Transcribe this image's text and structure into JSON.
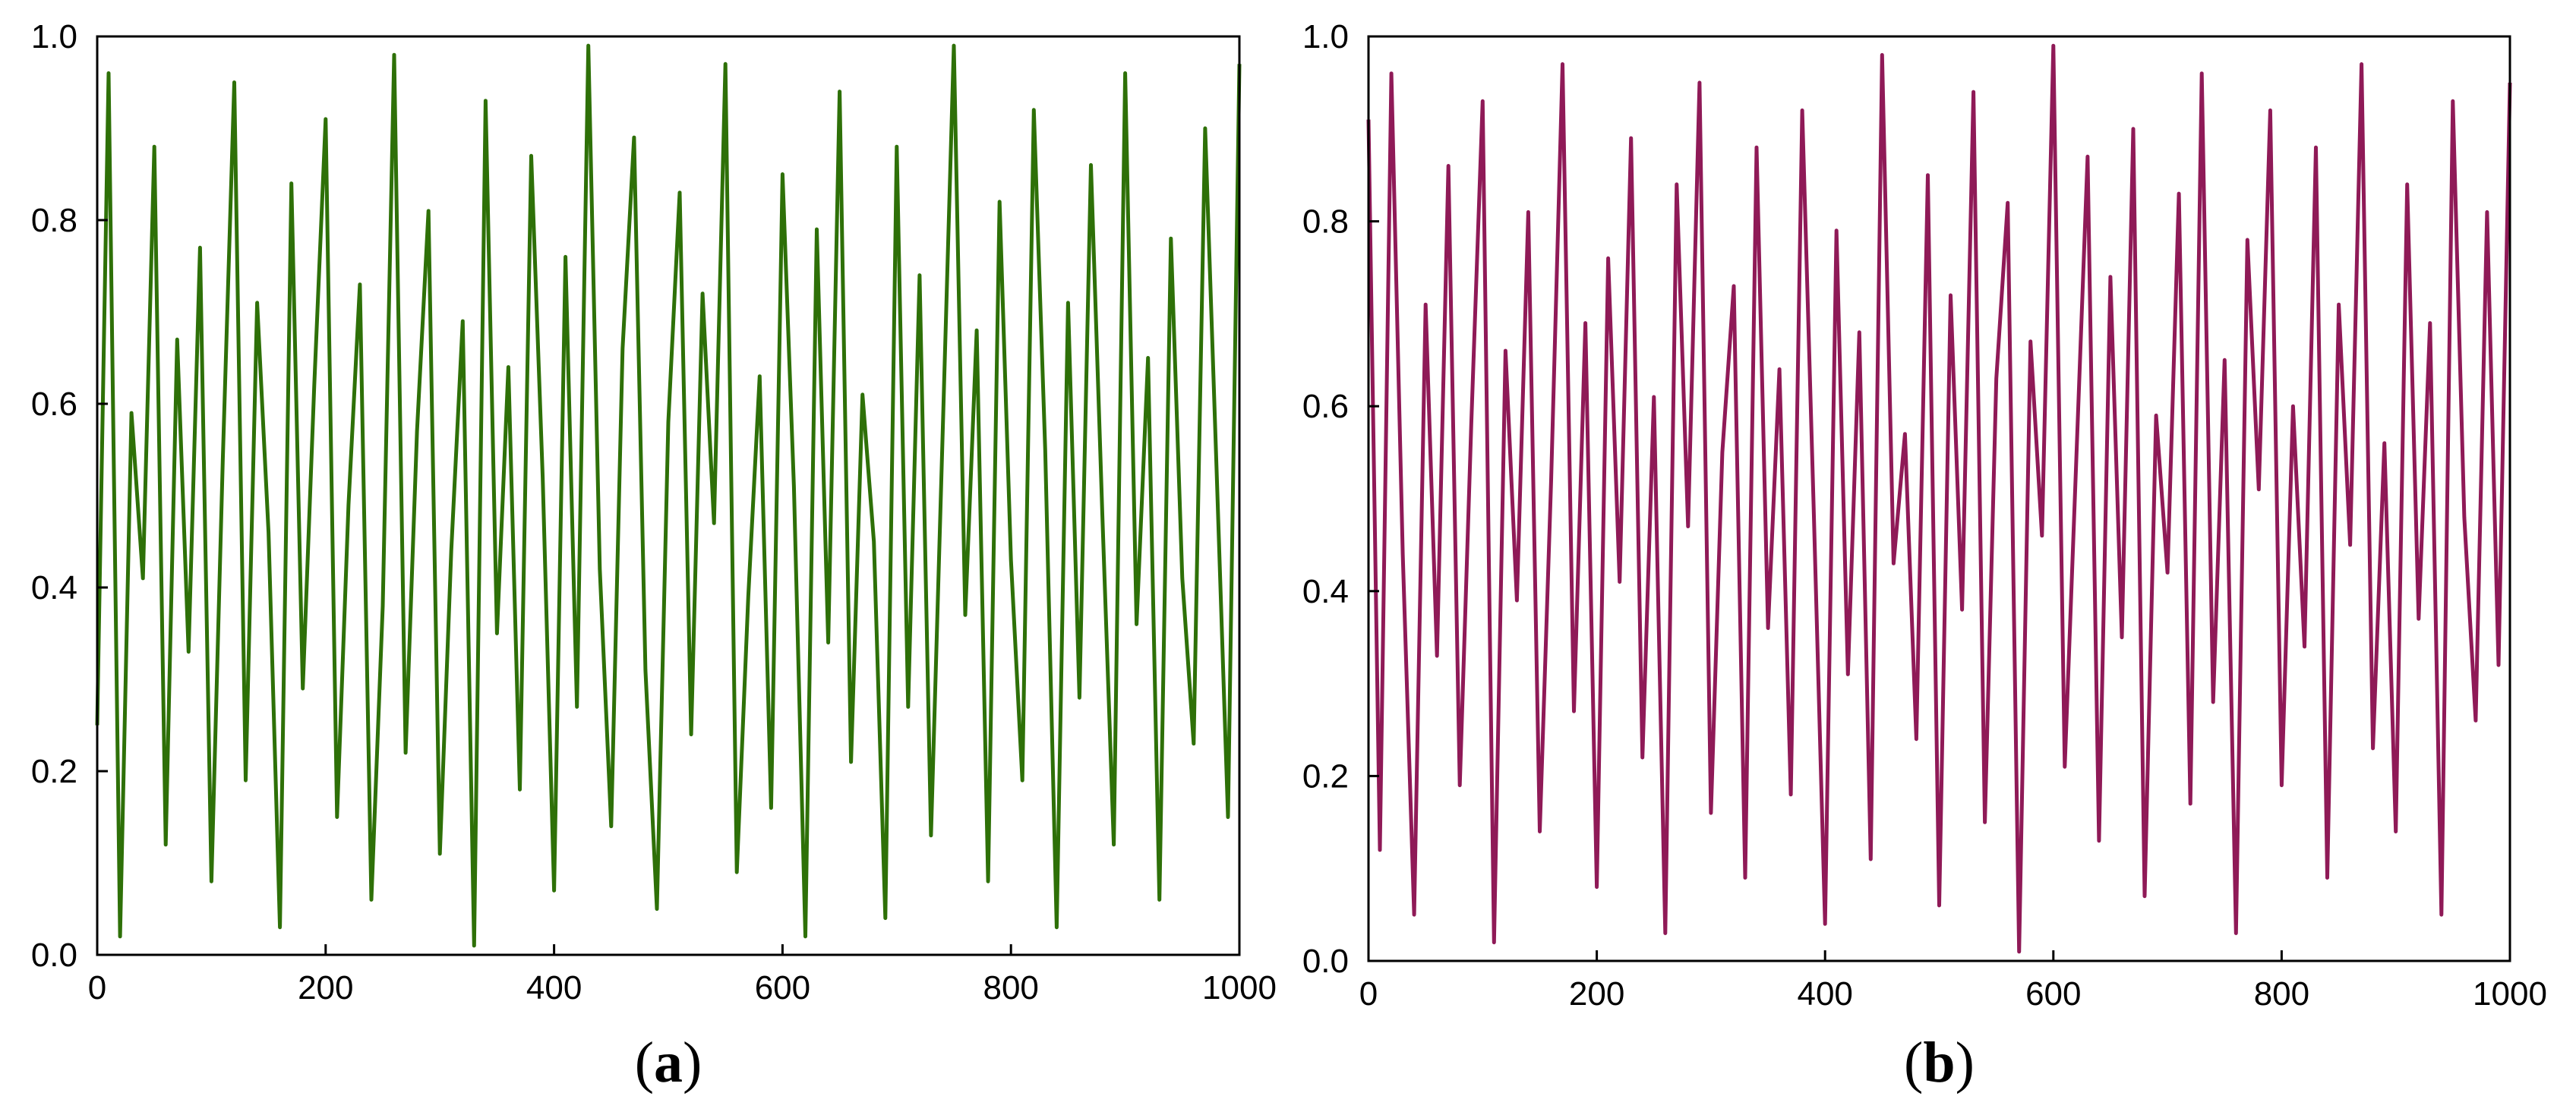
{
  "chart_data": [
    {
      "type": "line",
      "panel_label": {
        "open": "(",
        "letter": "a",
        "close": ")"
      },
      "title": "",
      "xlabel": "",
      "ylabel": "",
      "xlim": [
        0,
        1000
      ],
      "ylim": [
        0,
        1
      ],
      "x_ticks": [
        0,
        200,
        400,
        600,
        800,
        1000
      ],
      "x_tick_labels": [
        "0",
        "200",
        "400",
        "600",
        "800",
        "1000"
      ],
      "y_ticks": [
        0,
        0.2,
        0.4,
        0.6,
        0.8,
        1.0
      ],
      "y_tick_labels": [
        "0.0",
        "0.2",
        "0.4",
        "0.6",
        "0.8",
        "1.0"
      ],
      "grid": false,
      "legend": "none",
      "color": "#2e7008",
      "series": [
        {
          "x_start": 0,
          "x_step": 10,
          "values": [
            0.25,
            0.96,
            0.02,
            0.59,
            0.41,
            0.88,
            0.12,
            0.67,
            0.33,
            0.77,
            0.08,
            0.54,
            0.95,
            0.19,
            0.71,
            0.46,
            0.03,
            0.84,
            0.29,
            0.62,
            0.91,
            0.15,
            0.49,
            0.73,
            0.06,
            0.38,
            0.98,
            0.22,
            0.57,
            0.81,
            0.11,
            0.44,
            0.69,
            0.01,
            0.93,
            0.35,
            0.64,
            0.18,
            0.87,
            0.52,
            0.07,
            0.76,
            0.27,
            0.99,
            0.42,
            0.14,
            0.66,
            0.89,
            0.31,
            0.05,
            0.58,
            0.83,
            0.24,
            0.72,
            0.47,
            0.97,
            0.09,
            0.39,
            0.63,
            0.16,
            0.85,
            0.51,
            0.02,
            0.79,
            0.34,
            0.94,
            0.21,
            0.61,
            0.45,
            0.04,
            0.88,
            0.27,
            0.74,
            0.13,
            0.56,
            0.99,
            0.37,
            0.68,
            0.08,
            0.82,
            0.43,
            0.19,
            0.92,
            0.55,
            0.03,
            0.71,
            0.28,
            0.86,
            0.48,
            0.12,
            0.96,
            0.36,
            0.65,
            0.06,
            0.78,
            0.41,
            0.23,
            0.9,
            0.53,
            0.15,
            0.97
          ]
        }
      ]
    },
    {
      "type": "line",
      "panel_label": {
        "open": "(",
        "letter": "b",
        "close": ")"
      },
      "title": "",
      "xlabel": "",
      "ylabel": "",
      "xlim": [
        0,
        1000
      ],
      "ylim": [
        0,
        1
      ],
      "x_ticks": [
        0,
        200,
        400,
        600,
        800,
        1000
      ],
      "x_tick_labels": [
        "0",
        "200",
        "400",
        "600",
        "800",
        "1000"
      ],
      "y_ticks": [
        0,
        0.2,
        0.4,
        0.6,
        0.8,
        1.0
      ],
      "y_tick_labels": [
        "0.0",
        "0.2",
        "0.4",
        "0.6",
        "0.8",
        "1.0"
      ],
      "grid": false,
      "legend": "none",
      "color": "#8f1a57",
      "series": [
        {
          "x_start": 0,
          "x_step": 10,
          "values": [
            0.91,
            0.12,
            0.96,
            0.44,
            0.05,
            0.71,
            0.33,
            0.86,
            0.19,
            0.58,
            0.93,
            0.02,
            0.66,
            0.39,
            0.81,
            0.14,
            0.52,
            0.97,
            0.27,
            0.69,
            0.08,
            0.76,
            0.41,
            0.89,
            0.22,
            0.61,
            0.03,
            0.84,
            0.47,
            0.95,
            0.16,
            0.55,
            0.73,
            0.09,
            0.88,
            0.36,
            0.64,
            0.18,
            0.92,
            0.49,
            0.04,
            0.79,
            0.31,
            0.68,
            0.11,
            0.98,
            0.43,
            0.57,
            0.24,
            0.85,
            0.06,
            0.72,
            0.38,
            0.94,
            0.15,
            0.63,
            0.82,
            0.01,
            0.67,
            0.46,
            0.99,
            0.21,
            0.54,
            0.87,
            0.13,
            0.74,
            0.35,
            0.9,
            0.07,
            0.59,
            0.42,
            0.83,
            0.17,
            0.96,
            0.28,
            0.65,
            0.03,
            0.78,
            0.51,
            0.92,
            0.19,
            0.6,
            0.34,
            0.88,
            0.09,
            0.71,
            0.45,
            0.97,
            0.23,
            0.56,
            0.14,
            0.84,
            0.37,
            0.69,
            0.05,
            0.93,
            0.48,
            0.26,
            0.81,
            0.32,
            0.95
          ]
        }
      ]
    }
  ]
}
